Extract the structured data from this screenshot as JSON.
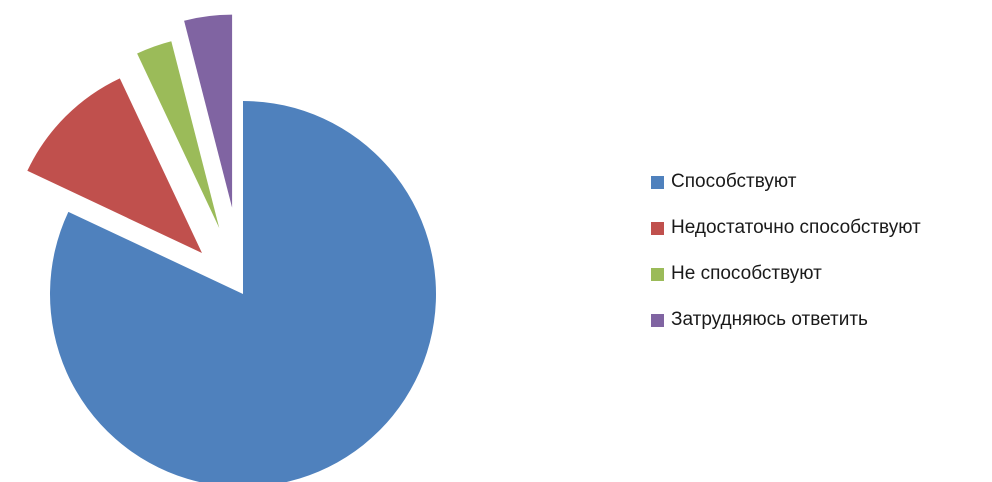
{
  "chart_data": {
    "type": "pie",
    "title": "",
    "legend_position": "right",
    "exploded": true,
    "slices": [
      {
        "label": "Способствуют",
        "value": 82,
        "color": "#4F81BD"
      },
      {
        "label": "Недостаточно способствуют",
        "value": 11,
        "color": "#C0504D"
      },
      {
        "label": "Не способствуют",
        "value": 3,
        "color": "#9BBB59"
      },
      {
        "label": "Затрудняюсь ответить",
        "value": 4,
        "color": "#8064A2"
      }
    ]
  }
}
